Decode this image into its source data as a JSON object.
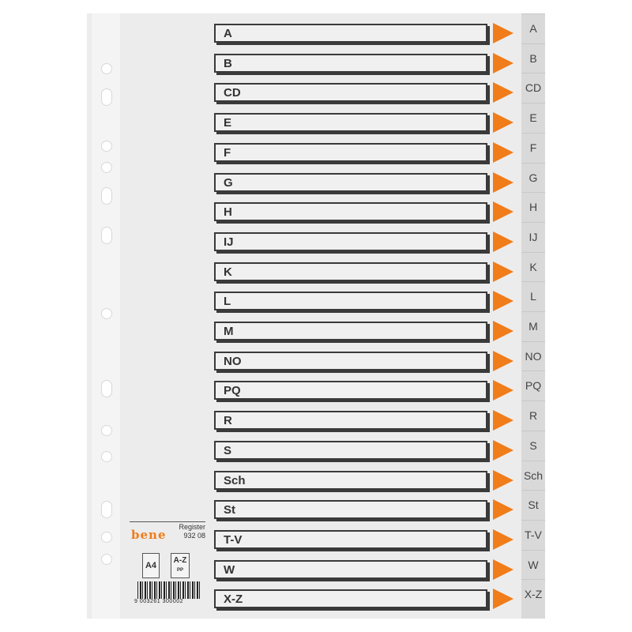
{
  "labels": [
    "A",
    "B",
    "CD",
    "E",
    "F",
    "G",
    "H",
    "IJ",
    "K",
    "L",
    "M",
    "NO",
    "PQ",
    "R",
    "S",
    "Sch",
    "St",
    "T-V",
    "W",
    "X-Z"
  ],
  "brand": {
    "logo": "bene",
    "product_line1": "Register",
    "product_line2": "932 08",
    "size_badge": "A4",
    "range_badge": "A-Z",
    "material_badge": "PP",
    "barcode_number": "9 003261 300002"
  },
  "colors": {
    "accent": "#f07c1a",
    "sheet": "#ececec",
    "tab_strip": "#d9d9d9"
  },
  "icons": {
    "arrow": "orange-triangle-arrow-icon"
  }
}
